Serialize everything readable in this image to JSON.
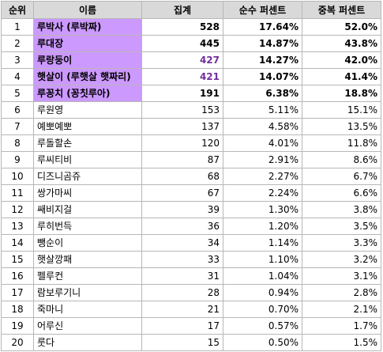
{
  "table": {
    "headers": {
      "rank": "순위",
      "name": "이름",
      "count": "집계",
      "net_percent": "순수 퍼센트",
      "dup_percent": "중복 퍼센트"
    },
    "rows": [
      {
        "rank": "1",
        "name": "루박사 (루박짜)",
        "count": "528",
        "net": "17.64%",
        "dup": "52.0%"
      },
      {
        "rank": "2",
        "name": "루대장",
        "count": "445",
        "net": "14.87%",
        "dup": "43.8%"
      },
      {
        "rank": "3",
        "name": "루랑둥이",
        "count": "427",
        "net": "14.27%",
        "dup": "42.0%"
      },
      {
        "rank": "4",
        "name": "햇살이 (루햇살 햇짜리)",
        "count": "421",
        "net": "14.07%",
        "dup": "41.4%"
      },
      {
        "rank": "5",
        "name": "루꽁치 (꽁칫루아)",
        "count": "191",
        "net": "6.38%",
        "dup": "18.8%"
      },
      {
        "rank": "6",
        "name": "루원영",
        "count": "153",
        "net": "5.11%",
        "dup": "15.1%"
      },
      {
        "rank": "7",
        "name": "예뽀예뽀",
        "count": "137",
        "net": "4.58%",
        "dup": "13.5%"
      },
      {
        "rank": "8",
        "name": "루돌할손",
        "count": "120",
        "net": "4.01%",
        "dup": "11.8%"
      },
      {
        "rank": "9",
        "name": "루씨티비",
        "count": "87",
        "net": "2.91%",
        "dup": "8.6%"
      },
      {
        "rank": "10",
        "name": "디즈니곰쥬",
        "count": "68",
        "net": "2.27%",
        "dup": "6.7%"
      },
      {
        "rank": "11",
        "name": "쌍가마씨",
        "count": "67",
        "net": "2.24%",
        "dup": "6.6%"
      },
      {
        "rank": "12",
        "name": "쌔비지걸",
        "count": "39",
        "net": "1.30%",
        "dup": "3.8%"
      },
      {
        "rank": "13",
        "name": "루히번득",
        "count": "36",
        "net": "1.20%",
        "dup": "3.5%"
      },
      {
        "rank": "14",
        "name": "뺑순이",
        "count": "34",
        "net": "1.14%",
        "dup": "3.3%"
      },
      {
        "rank": "15",
        "name": "햇살깡패",
        "count": "33",
        "net": "1.10%",
        "dup": "3.2%"
      },
      {
        "rank": "16",
        "name": "펠루컨",
        "count": "31",
        "net": "1.04%",
        "dup": "3.1%"
      },
      {
        "rank": "17",
        "name": "람보루기니",
        "count": "28",
        "net": "0.94%",
        "dup": "2.8%"
      },
      {
        "rank": "18",
        "name": "죽마니",
        "count": "21",
        "net": "0.70%",
        "dup": "2.1%"
      },
      {
        "rank": "19",
        "name": "어루신",
        "count": "17",
        "net": "0.57%",
        "dup": "1.7%"
      },
      {
        "rank": "20",
        "name": "룻다",
        "count": "15",
        "net": "0.50%",
        "dup": "1.5%"
      }
    ]
  },
  "colors": {
    "highlight_fill": "#cc99ff",
    "purple_text": "#7030a0",
    "header_fill": "#d9d9d9"
  }
}
